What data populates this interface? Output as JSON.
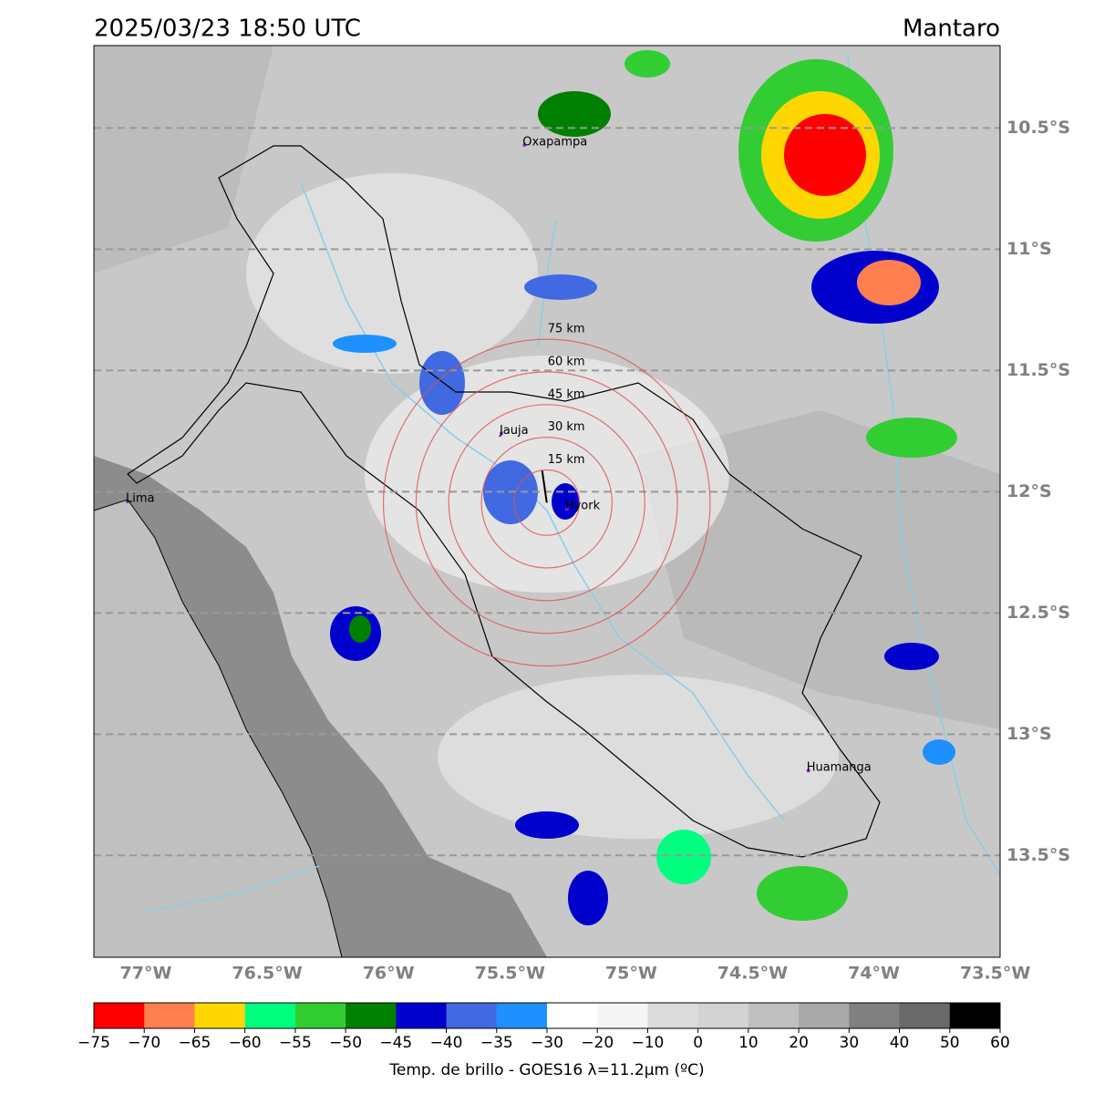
{
  "chart_data": {
    "type": "map",
    "title": "2025/03/23 18:50 UTC",
    "region": "Mantaro",
    "xlim": [
      -77.214,
      -73.48
    ],
    "ylim": [
      -13.92,
      -10.16
    ],
    "xticks": [
      {
        "value": -77,
        "label": "77°W"
      },
      {
        "value": -76.5,
        "label": "76.5°W"
      },
      {
        "value": -76,
        "label": "76°W"
      },
      {
        "value": -75.5,
        "label": "75.5°W"
      },
      {
        "value": -75,
        "label": "75°W"
      },
      {
        "value": -74.5,
        "label": "74.5°W"
      },
      {
        "value": -74,
        "label": "74°W"
      },
      {
        "value": -73.5,
        "label": "73.5°W"
      }
    ],
    "yticks": [
      {
        "value": -10.5,
        "label": "10.5°S"
      },
      {
        "value": -11,
        "label": "11°S"
      },
      {
        "value": -11.5,
        "label": "11.5°S"
      },
      {
        "value": -12,
        "label": "12°S"
      },
      {
        "value": -12.5,
        "label": "12.5°S"
      },
      {
        "value": -13,
        "label": "13°S"
      },
      {
        "value": -13.5,
        "label": "13.5°S"
      }
    ],
    "grid": true,
    "rings": {
      "center": [
        -75.348,
        -12.045
      ],
      "color": "#e05050",
      "radii": [
        {
          "value": 15,
          "label": "15 km"
        },
        {
          "value": 30,
          "label": "30 km"
        },
        {
          "value": 45,
          "label": "45 km"
        },
        {
          "value": 60,
          "label": "60 km"
        },
        {
          "value": 75,
          "label": "75 km"
        }
      ]
    },
    "cities": [
      {
        "name": "Oxapampa",
        "lon": -75.44,
        "lat": -10.57
      },
      {
        "name": "Jauja",
        "lon": -75.535,
        "lat": -11.76
      },
      {
        "name": "Hyork",
        "lon": -75.265,
        "lat": -12.07
      },
      {
        "name": "Lima",
        "lon": -77.075,
        "lat": -12.04
      },
      {
        "name": "Huamanga",
        "lon": -74.27,
        "lat": -13.15
      }
    ],
    "colorbar": {
      "label": "Temp. de brillo - GOES16 λ=11.2μm (ºC)",
      "bounds": [
        {
          "value": -75,
          "label": "−75"
        },
        {
          "value": -70,
          "label": "−70"
        },
        {
          "value": -65,
          "label": "−65"
        },
        {
          "value": -60,
          "label": "−60"
        },
        {
          "value": -55,
          "label": "−55"
        },
        {
          "value": -50,
          "label": "−50"
        },
        {
          "value": -45,
          "label": "−45"
        },
        {
          "value": -40,
          "label": "−40"
        },
        {
          "value": -35,
          "label": "−35"
        },
        {
          "value": -30,
          "label": "−30"
        },
        {
          "value": -20,
          "label": "−20"
        },
        {
          "value": -10,
          "label": "−10"
        },
        0,
        10,
        20,
        30,
        40,
        50,
        60
      ],
      "colors": [
        "#ff0000",
        "#ff7f50",
        "#ffd700",
        "#00ff7f",
        "#32cd32",
        "#008000",
        "#0000cd",
        "#4169e1",
        "#1e90ff",
        "#ffffff",
        "#f5f5f5",
        "#dcdcdc",
        "#d3d3d3",
        "#c0c0c0",
        "#a9a9a9",
        "#808080",
        "#696969",
        "#000000"
      ]
    }
  }
}
